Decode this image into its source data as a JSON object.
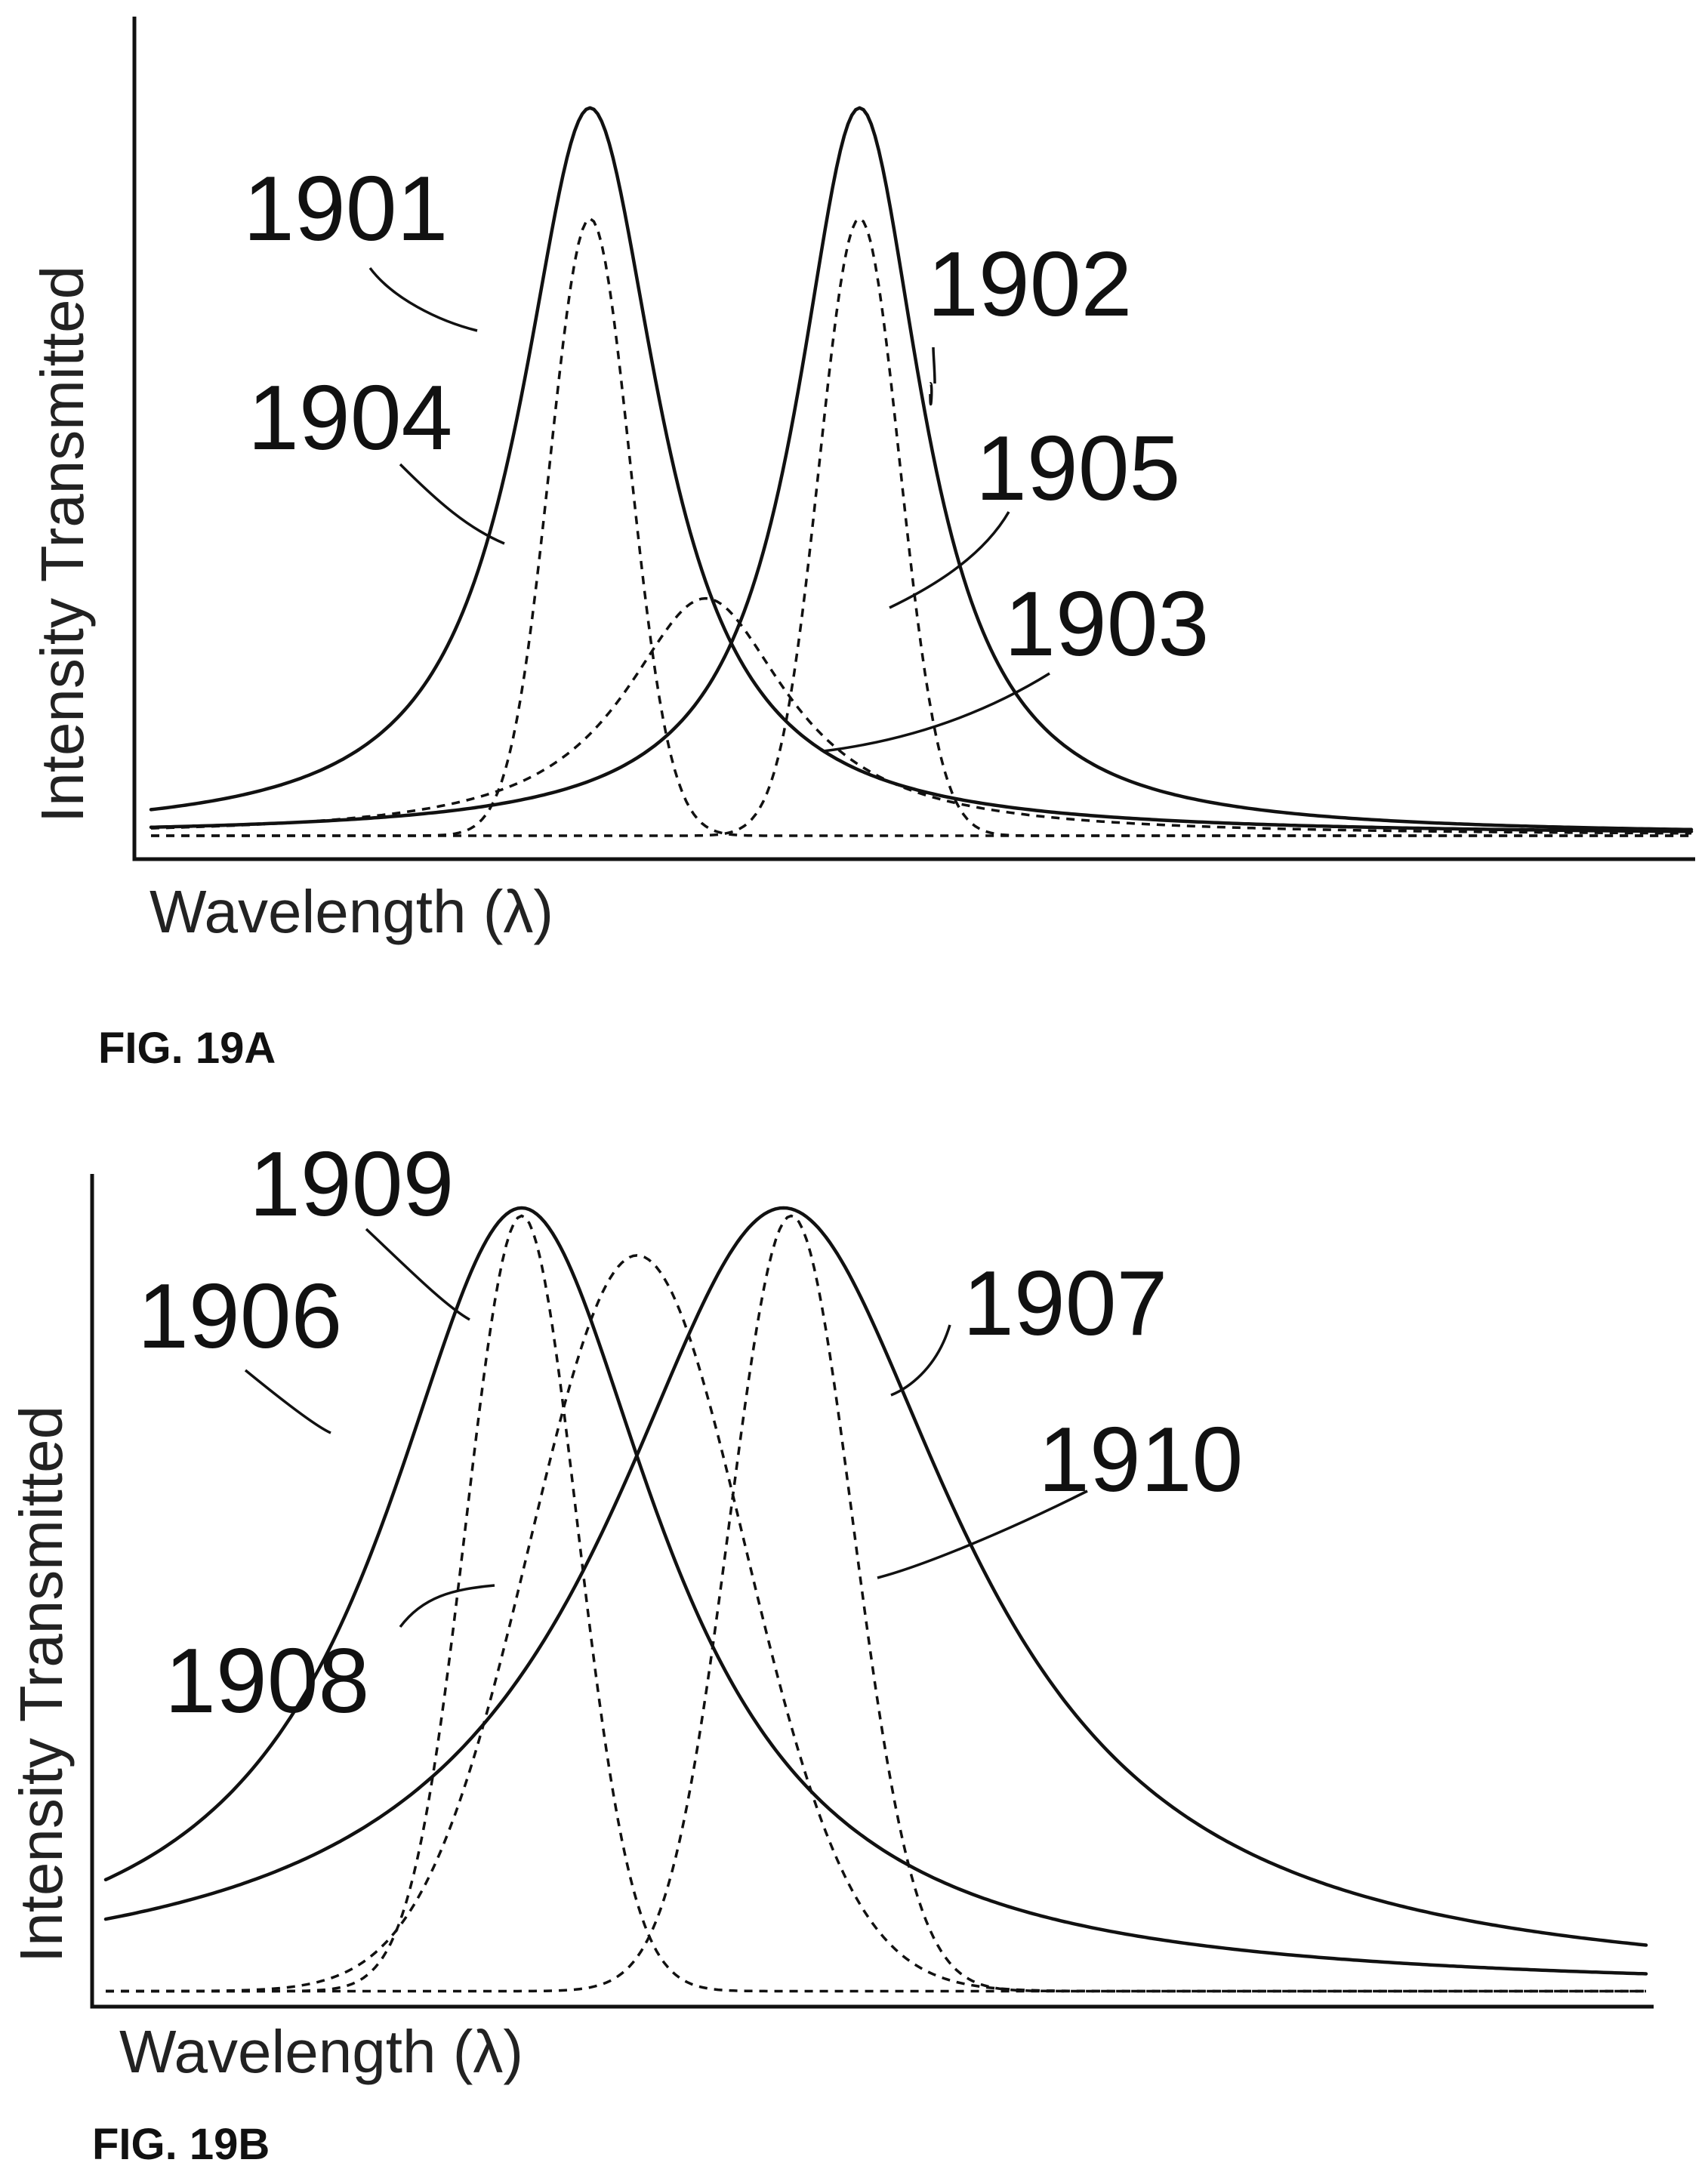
{
  "chart_data": [
    {
      "type": "line",
      "figure_label": "FIG. 19A",
      "xlabel": "Wavelength (λ)",
      "ylabel": "Intensity Transmitted",
      "grid": false,
      "x_range": [
        0,
        100
      ],
      "y_range": [
        0,
        1
      ],
      "series": [
        {
          "name": "1901",
          "style": "solid",
          "shape": "lorentzian",
          "center": 28.5,
          "width": 5.5,
          "amplitude": 0.92
        },
        {
          "name": "1902",
          "style": "solid",
          "shape": "lorentzian",
          "center": 46.0,
          "width": 5.0,
          "amplitude": 0.92
        },
        {
          "name": "1903",
          "style": "dashed",
          "shape": "lorentzian",
          "center": 36.0,
          "width": 6.5,
          "amplitude": 0.3
        },
        {
          "name": "1904",
          "style": "dashed",
          "shape": "gaussian",
          "center": 28.5,
          "width": 2.6,
          "amplitude": 0.78
        },
        {
          "name": "1905",
          "style": "dashed",
          "shape": "gaussian",
          "center": 46.0,
          "width": 2.6,
          "amplitude": 0.78
        }
      ],
      "labels": [
        "1901",
        "1902",
        "1903",
        "1904",
        "1905"
      ]
    },
    {
      "type": "line",
      "figure_label": "FIG. 19B",
      "xlabel": "Wavelength (λ)",
      "ylabel": "Intensity Transmitted",
      "grid": false,
      "x_range": [
        0,
        100
      ],
      "y_range": [
        0,
        1
      ],
      "series": [
        {
          "name": "1906",
          "style": "solid",
          "shape": "lorentzian",
          "center": 27.0,
          "width": 11.0,
          "amplitude": 0.99
        },
        {
          "name": "1907",
          "style": "solid",
          "shape": "lorentzian",
          "center": 44.0,
          "width": 14.0,
          "amplitude": 0.99
        },
        {
          "name": "1908",
          "style": "dashed",
          "shape": "gaussian",
          "center": 34.5,
          "width": 7.0,
          "amplitude": 0.93
        },
        {
          "name": "1909",
          "style": "dashed",
          "shape": "gaussian",
          "center": 27.0,
          "width": 3.6,
          "amplitude": 0.98
        },
        {
          "name": "1910",
          "style": "dashed",
          "shape": "gaussian",
          "center": 44.5,
          "width": 4.0,
          "amplitude": 0.98
        }
      ],
      "labels": [
        "1906",
        "1907",
        "1908",
        "1909",
        "1910"
      ]
    }
  ],
  "panels": [
    {
      "figure_label": "FIG. 19A",
      "xlabel": "Wavelength (λ)",
      "ylabel": "Intensity Transmitted",
      "labels": {
        "a": "1901",
        "b": "1902",
        "c": "1903",
        "d": "1904",
        "e": "1905"
      }
    },
    {
      "figure_label": "FIG. 19B",
      "xlabel": "Wavelength (λ)",
      "ylabel": "Intensity Transmitted",
      "labels": {
        "a": "1906",
        "b": "1907",
        "c": "1908",
        "d": "1909",
        "e": "1910"
      }
    }
  ]
}
